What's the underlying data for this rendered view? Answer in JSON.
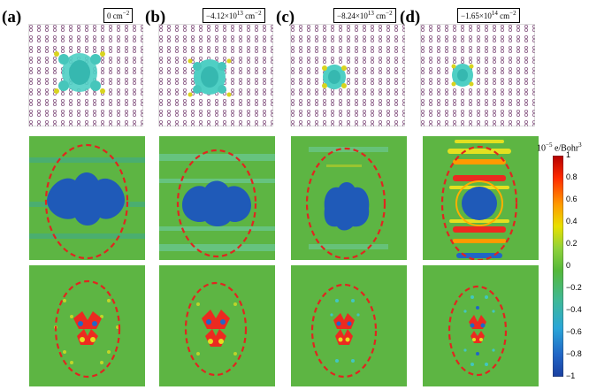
{
  "columns": [
    {
      "label": "(a)",
      "conc_value": "0 cm",
      "conc_exp": "−2"
    },
    {
      "label": "(b)",
      "conc_value": "−4.12×10",
      "conc_exp": "13",
      "conc_unit": " cm",
      "conc_unit_exp": "−2"
    },
    {
      "label": "(c)",
      "conc_value": "−8.24×10",
      "conc_exp": "13",
      "conc_unit": " cm",
      "conc_unit_exp": "−2"
    },
    {
      "label": "(d)",
      "conc_value": "−1.65×10",
      "conc_exp": "14",
      "conc_unit": " cm",
      "conc_unit_exp": "−2"
    }
  ],
  "colorbar": {
    "title_prefix": "10",
    "title_exp": "−5",
    "title_unit": " e/Bohr",
    "title_unit_exp": "3",
    "ticks": [
      "1",
      "0.8",
      "0.6",
      "0.4",
      "0.2",
      "0",
      "−0.2",
      "−0.4",
      "−0.6",
      "−0.8",
      "−1"
    ],
    "colors": [
      "#b40000",
      "#ff2a00",
      "#ff9a00",
      "#e8e000",
      "#8fd23a",
      "#55b83a",
      "#3fb89a",
      "#2aa6d8",
      "#2166c6",
      "#1a3fa0"
    ]
  },
  "colors": {
    "background_green": "#5db543",
    "dashed_ellipse": "#e0261f",
    "blob_blue": "#1f5ab8",
    "red": "#ec2a20",
    "yellow": "#e3e020",
    "cyan": "#41c6c0"
  }
}
